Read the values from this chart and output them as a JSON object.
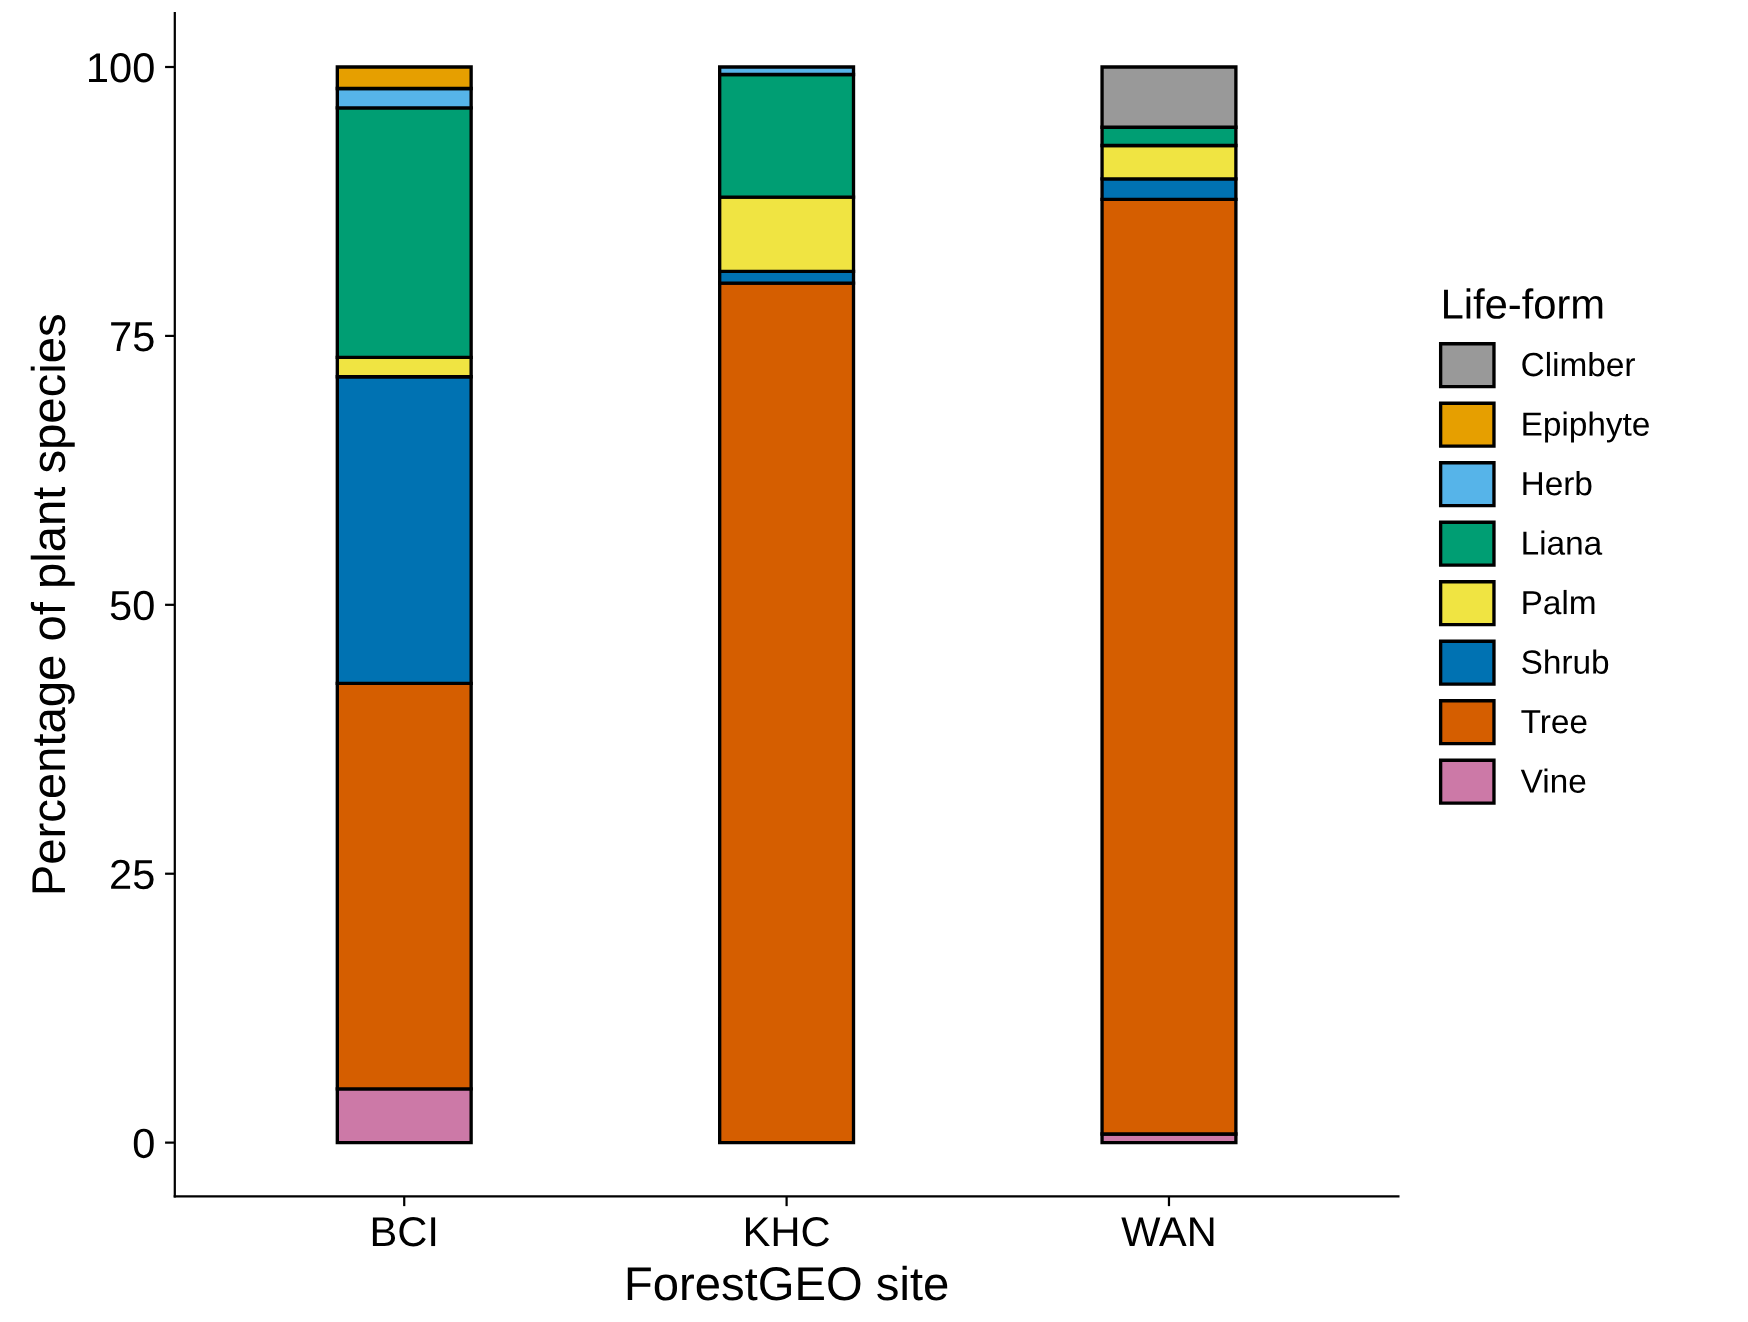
{
  "chart_data": {
    "type": "bar",
    "stacked": true,
    "xlabel": "ForestGEO site",
    "ylabel": "Percentage of plant species",
    "legend_title": "Life-form",
    "legend": "right",
    "categories": [
      "BCI",
      "KHC",
      "WAN"
    ],
    "series": [
      {
        "name": "Vine",
        "color": "#cc79a7",
        "values": [
          5.0,
          null,
          0.8
        ]
      },
      {
        "name": "Tree",
        "color": "#d55e00",
        "values": [
          37.7,
          79.9,
          86.9
        ]
      },
      {
        "name": "Shrub",
        "color": "#0072b2",
        "values": [
          28.5,
          1.1,
          1.9
        ]
      },
      {
        "name": "Palm",
        "color": "#f0e442",
        "values": [
          1.8,
          6.9,
          3.1
        ]
      },
      {
        "name": "Liana",
        "color": "#009e73",
        "values": [
          23.2,
          11.4,
          1.7
        ]
      },
      {
        "name": "Herb",
        "color": "#56b4e9",
        "values": [
          1.8,
          0.7,
          null
        ]
      },
      {
        "name": "Epiphyte",
        "color": "#e69f00",
        "values": [
          2.0,
          null,
          null
        ]
      },
      {
        "name": "Climber",
        "color": "#999999",
        "values": [
          null,
          null,
          5.6
        ]
      }
    ],
    "ylim": [
      -5,
      105
    ],
    "yticks": [
      0,
      25,
      50,
      75,
      100
    ],
    "grid": false
  }
}
